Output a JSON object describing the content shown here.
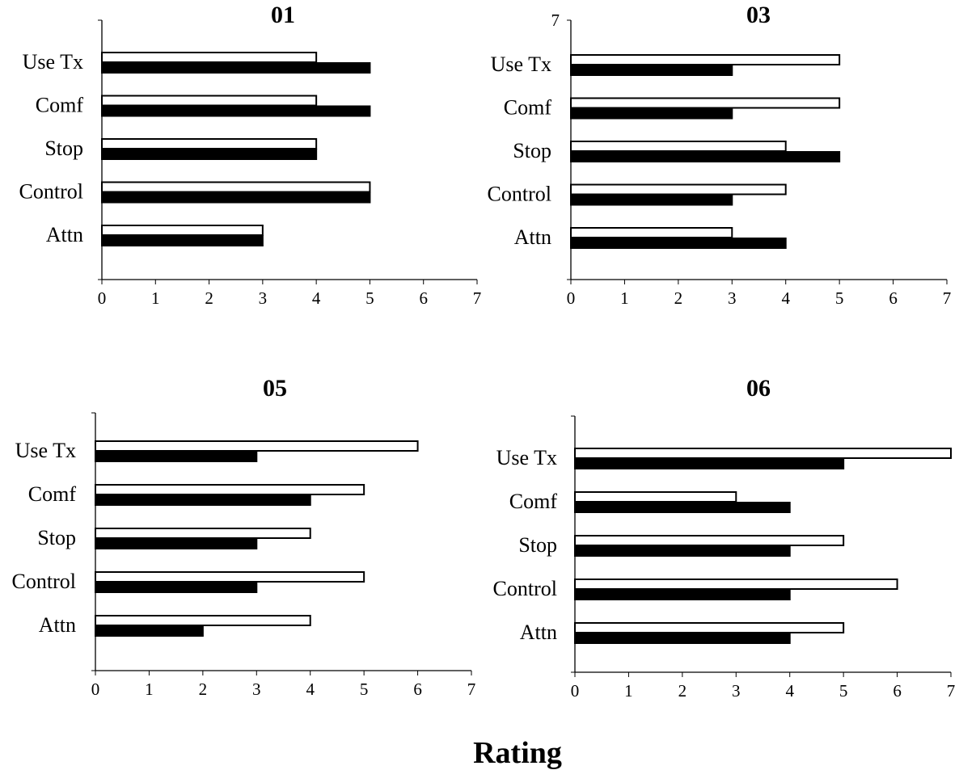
{
  "figure": {
    "xlabel": "Rating"
  },
  "chart_data": [
    {
      "type": "bar",
      "orientation": "horizontal",
      "title": "01",
      "categories": [
        "Use Tx",
        "Comf",
        "Stop",
        "Control",
        "Attn"
      ],
      "series": [
        {
          "values": [
            4,
            4,
            4,
            5,
            3
          ],
          "color": "#ffffff"
        },
        {
          "values": [
            5,
            5,
            4,
            5,
            3
          ],
          "color": "#000000"
        }
      ],
      "xlim": [
        0,
        7
      ],
      "xticks": [
        "0",
        "1",
        "2",
        "3",
        "4",
        "5",
        "6",
        "7"
      ],
      "yaxis_top_tick": "",
      "grid": false
    },
    {
      "type": "bar",
      "orientation": "horizontal",
      "title": "03",
      "categories": [
        "Use Tx",
        "Comf",
        "Stop",
        "Control",
        "Attn"
      ],
      "series": [
        {
          "values": [
            5,
            5,
            4,
            4,
            3
          ],
          "color": "#ffffff"
        },
        {
          "values": [
            3,
            3,
            5,
            3,
            4
          ],
          "color": "#000000"
        }
      ],
      "xlim": [
        0,
        7
      ],
      "xticks": [
        "0",
        "1",
        "2",
        "3",
        "4",
        "5",
        "6",
        "7"
      ],
      "yaxis_top_tick": "7",
      "grid": false
    },
    {
      "type": "bar",
      "orientation": "horizontal",
      "title": "05",
      "categories": [
        "Use Tx",
        "Comf",
        "Stop",
        "Control",
        "Attn"
      ],
      "series": [
        {
          "values": [
            6,
            5,
            4,
            5,
            4
          ],
          "color": "#ffffff"
        },
        {
          "values": [
            3,
            4,
            3,
            3,
            2
          ],
          "color": "#000000"
        }
      ],
      "xlim": [
        0,
        7
      ],
      "xticks": [
        "0",
        "1",
        "2",
        "3",
        "4",
        "5",
        "6",
        "7"
      ],
      "yaxis_top_tick": "",
      "grid": false
    },
    {
      "type": "bar",
      "orientation": "horizontal",
      "title": "06",
      "categories": [
        "Use Tx",
        "Comf",
        "Stop",
        "Control",
        "Attn"
      ],
      "series": [
        {
          "values": [
            7,
            3,
            5,
            6,
            5
          ],
          "color": "#ffffff"
        },
        {
          "values": [
            5,
            4,
            4,
            4,
            4
          ],
          "color": "#000000"
        }
      ],
      "xlim": [
        0,
        7
      ],
      "xticks": [
        "0",
        "1",
        "2",
        "3",
        "4",
        "5",
        "6",
        "7"
      ],
      "yaxis_top_tick": "",
      "grid": false
    }
  ]
}
